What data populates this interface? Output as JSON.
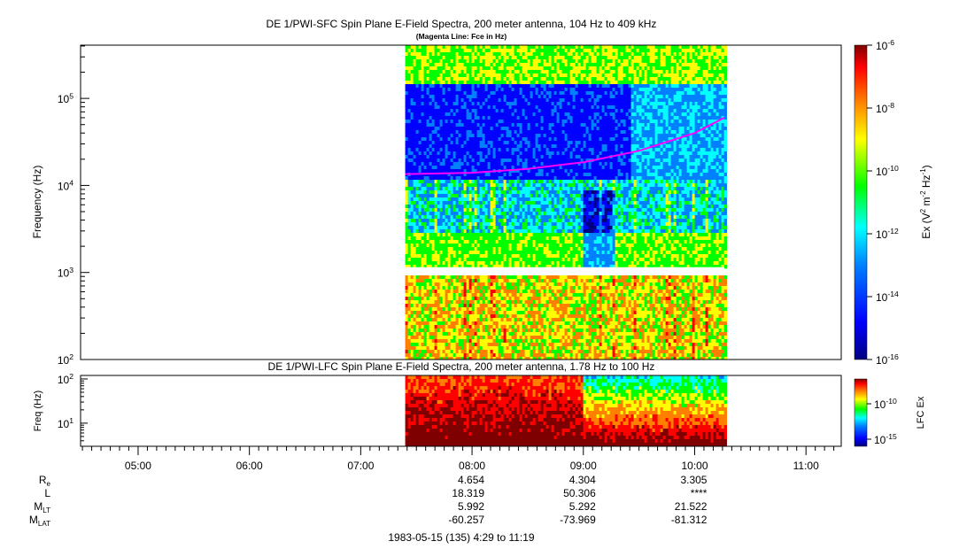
{
  "titles": {
    "sfc_title": "DE 1/PWI-SFC  Spin Plane E-Field Spectra, 200 meter antenna, 104 Hz to 409 kHz",
    "sfc_subtitle": "(Magenta Line: Fce in Hz)",
    "lfc_title": "DE 1/PWI-LFC  Spin Plane E-Field Spectra, 200 meter antenna, 1.78 Hz to 100 Hz",
    "footer": "1983-05-15 (135) 4:29 to 11:19"
  },
  "colors": {
    "magenta_fce": "#ff00ff",
    "scale": [
      "#7f0000",
      "#ff0000",
      "#ff8000",
      "#ffff00",
      "#00ff00",
      "#00ffff",
      "#0080ff",
      "#0000ff",
      "#00007f"
    ]
  },
  "chart_data": [
    {
      "type": "heatmap",
      "title": "DE 1/PWI-SFC  Spin Plane E-Field Spectra, 200 meter antenna, 104 Hz to 409 kHz",
      "ylabel": "Frequency (Hz)",
      "y_scale": "log",
      "ylim": [
        100,
        409000
      ],
      "y_ticks": [
        {
          "base": "10",
          "exp": "2"
        },
        {
          "base": "10",
          "exp": "3"
        },
        {
          "base": "10",
          "exp": "4"
        },
        {
          "base": "10",
          "exp": "5"
        }
      ],
      "xlim": [
        "04:29",
        "11:19"
      ],
      "data_time_range": [
        "07:24",
        "10:16"
      ],
      "colorbar": {
        "label_parts": [
          "Ex (V",
          "2",
          " m",
          "-2",
          " Hz",
          "-1",
          ")"
        ],
        "scale": "log",
        "range": [
          1e-16,
          1e-06
        ],
        "ticks": [
          {
            "base": "10",
            "exp": "-6"
          },
          {
            "base": "10",
            "exp": "-8"
          },
          {
            "base": "10",
            "exp": "-10"
          },
          {
            "base": "10",
            "exp": "-12"
          },
          {
            "base": "10",
            "exp": "-14"
          },
          {
            "base": "10",
            "exp": "-16"
          }
        ]
      },
      "fce_line": {
        "name": "Fce",
        "time": [
          "07:24",
          "08:00",
          "08:30",
          "09:00",
          "09:30",
          "10:00",
          "10:16"
        ],
        "freq_hz": [
          13500,
          14000,
          15500,
          18500,
          25000,
          40000,
          60000
        ]
      }
    },
    {
      "type": "heatmap",
      "title": "DE 1/PWI-LFC  Spin Plane E-Field Spectra, 200 meter antenna, 1.78 Hz to 100 Hz",
      "ylabel": "Freq (Hz)",
      "y_scale": "log",
      "ylim": [
        3,
        120
      ],
      "y_ticks": [
        {
          "base": "10",
          "exp": "1"
        },
        {
          "base": "10",
          "exp": "2"
        }
      ],
      "colorbar": {
        "label": "LFC Ex",
        "scale": "log",
        "ticks": [
          {
            "base": "10",
            "exp": "-10"
          },
          {
            "base": "10",
            "exp": "-15"
          }
        ]
      }
    }
  ],
  "time_axis": {
    "labels": [
      "05:00",
      "06:00",
      "07:00",
      "08:00",
      "09:00",
      "10:00",
      "11:00"
    ]
  },
  "ephemeris": {
    "rows": [
      {
        "label": "R",
        "sub": "e",
        "values": [
          "4.654",
          "4.304",
          "3.305"
        ]
      },
      {
        "label": "L",
        "sub": "",
        "values": [
          "18.319",
          "50.306",
          "****"
        ]
      },
      {
        "label": "M",
        "sub": "LT",
        "values": [
          "5.992",
          "5.292",
          "21.522"
        ]
      },
      {
        "label": "M",
        "sub": "LAT",
        "values": [
          "-60.257",
          "-73.969",
          "-81.312"
        ]
      }
    ]
  }
}
